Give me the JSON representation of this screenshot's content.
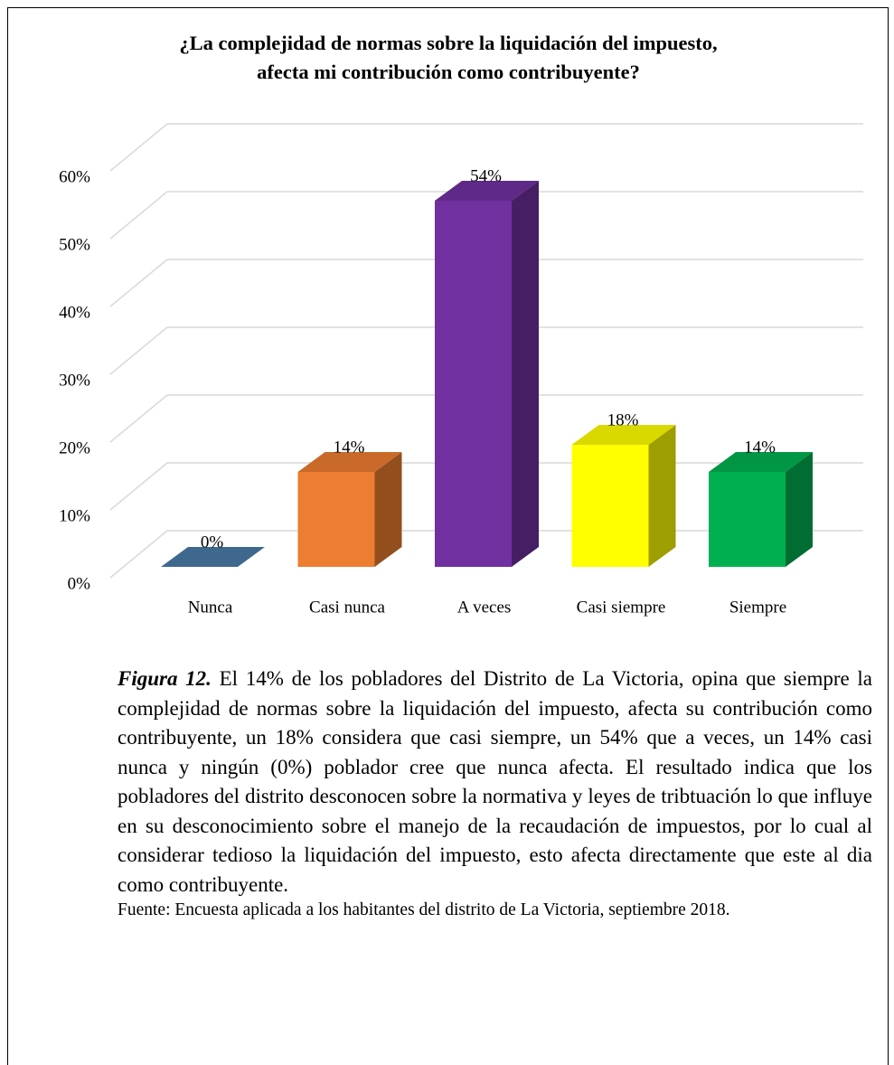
{
  "chart_data": {
    "type": "bar3d",
    "title": [
      "¿La complejidad de normas sobre la liquidación del impuesto,",
      "afecta mi contribución como contribuyente?"
    ],
    "categories": [
      "Nunca",
      "Casi nunca",
      "A veces",
      "Casi siempre",
      "Siempre"
    ],
    "values": [
      0,
      14,
      54,
      18,
      14
    ],
    "value_labels": [
      "0%",
      "14%",
      "54%",
      "18%",
      "14%"
    ],
    "colors": [
      "#4a7aa8",
      "#ed7d31",
      "#7030a0",
      "#ffff00",
      "#00b050"
    ],
    "ylim": [
      0,
      60
    ],
    "yticks": [
      {
        "value": 0,
        "label": "0%"
      },
      {
        "value": 10,
        "label": "10%"
      },
      {
        "value": 20,
        "label": "20%"
      },
      {
        "value": 30,
        "label": "30%"
      },
      {
        "value": 40,
        "label": "40%"
      },
      {
        "value": 50,
        "label": "50%"
      },
      {
        "value": 60,
        "label": "60%"
      }
    ],
    "grid": true
  },
  "caption": {
    "label": "Figura 12.",
    "text": " El 14% de los pobladores del  Distrito de La Victoria, opina que siempre la complejidad de normas sobre la liquidación del impuesto, afecta su contribución como contribuyente, un 18% considera que casi siempre, un 54% que a veces, un 14% casi nunca y ningún (0%) poblador cree que nunca afecta. El resultado indica que los pobladores del distrito desconocen sobre la normativa y leyes de tribtuación lo que influye en su desconocimiento sobre el manejo de la recaudación de impuestos, por lo cual al considerar tedioso la liquidación del impuesto, esto afecta directamente que este al dia como contribuyente."
  },
  "source": "Fuente: Encuesta aplicada a los habitantes del distrito de La Victoria, septiembre 2018."
}
